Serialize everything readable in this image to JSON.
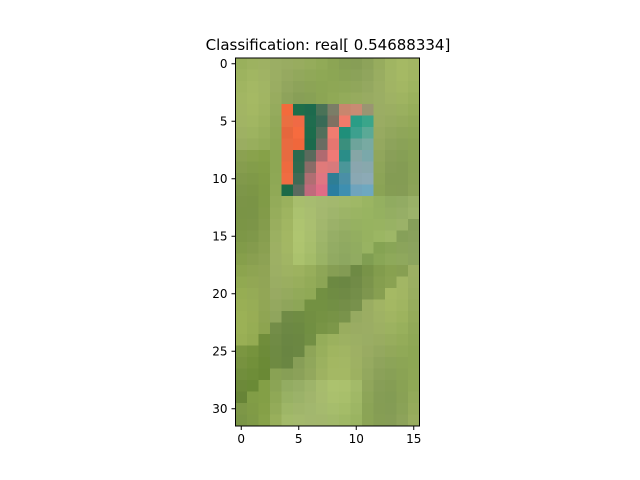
{
  "chart_data": {
    "type": "heatmap",
    "title": "Classification: real[ 0.54688334]",
    "xlabel": "",
    "ylabel": "",
    "xlim": [
      -0.5,
      15.5
    ],
    "ylim": [
      31.5,
      -0.5
    ],
    "x_ticks": [
      0,
      5,
      10,
      15
    ],
    "y_ticks": [
      0,
      5,
      10,
      15,
      20,
      25,
      30
    ],
    "grid": false,
    "legend": "none",
    "image": {
      "width": 16,
      "height": 32,
      "background_tone": "green-olive field",
      "patch_region": {
        "x": [
          4,
          11
        ],
        "y": [
          4,
          11
        ]
      },
      "patch_rows": [
        [
          "#f36b3c",
          "#1e6e4a",
          "#1d6a4d",
          "#4a7257",
          "#7b7d67",
          "#c8866e",
          "#c98b73",
          "#9a9572"
        ],
        [
          "#ea6f41",
          "#f06a45",
          "#1f6c4e",
          "#386a56",
          "#7f7162",
          "#f07a6a",
          "#2a9d86",
          "#3aa58a"
        ],
        [
          "#e6673d",
          "#f66b3f",
          "#1c6c4c",
          "#516f5b",
          "#f07c70",
          "#1f8f7a",
          "#3da08e",
          "#5aa996"
        ],
        [
          "#e96a40",
          "#f0673c",
          "#1a6a4c",
          "#6a6c62",
          "#e57670",
          "#3a8f7d",
          "#6ea49b",
          "#78aaa2"
        ],
        [
          "#e76a40",
          "#2a6a4f",
          "#5a6a5c",
          "#b06a70",
          "#ef7a76",
          "#2a8d88",
          "#86a6a6",
          "#7aa8aa"
        ],
        [
          "#ee6a3f",
          "#2f6a4f",
          "#8a6c67",
          "#e07a7a",
          "#d87a7c",
          "#4b9699",
          "#8aa6ae",
          "#88a8ad"
        ],
        [
          "#f06c42",
          "#3e6a55",
          "#b06e72",
          "#e07682",
          "#2e7e95",
          "#4a8fa6",
          "#8aa8b3",
          "#8caab6"
        ],
        [
          "#1c6a48",
          "#5a6a5f",
          "#c06a7c",
          "#e06c86",
          "#2a7ea0",
          "#3e8fb0",
          "#6fa4bd",
          "#6ea8c0"
        ]
      ]
    }
  }
}
